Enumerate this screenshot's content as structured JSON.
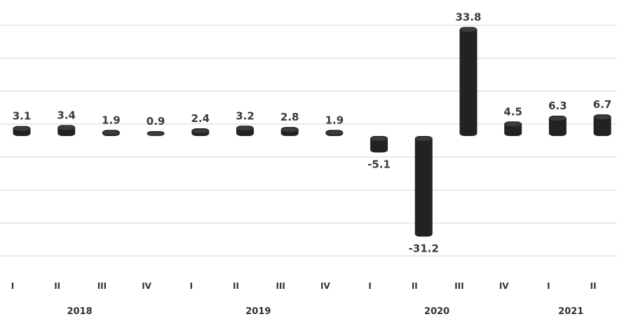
{
  "chart_data": {
    "type": "bar",
    "title": "",
    "categories": [
      "I",
      "II",
      "III",
      "IV",
      "I",
      "II",
      "III",
      "IV",
      "I",
      "II",
      "III",
      "IV",
      "I",
      "II"
    ],
    "years": [
      {
        "label": "2018",
        "span": [
          0,
          3
        ]
      },
      {
        "label": "2019",
        "span": [
          4,
          7
        ]
      },
      {
        "label": "2020",
        "span": [
          8,
          11
        ]
      },
      {
        "label": "2021",
        "span": [
          12,
          13
        ]
      }
    ],
    "values": [
      3.1,
      3.4,
      1.9,
      0.9,
      2.4,
      3.2,
      2.8,
      1.9,
      -5.1,
      -31.2,
      33.8,
      4.5,
      6.3,
      6.7
    ],
    "value_labels": [
      "3.1",
      "3.4",
      "1.9",
      "0.9",
      "2.4",
      "3.2",
      "2.8",
      "1.9",
      "-5.1",
      "-31.2",
      "33.8",
      "4.5",
      "6.3",
      "6.7"
    ],
    "ylim": [
      -35,
      35
    ],
    "grid": true,
    "bar_style": "cylinder",
    "bar_color": "#222222"
  }
}
